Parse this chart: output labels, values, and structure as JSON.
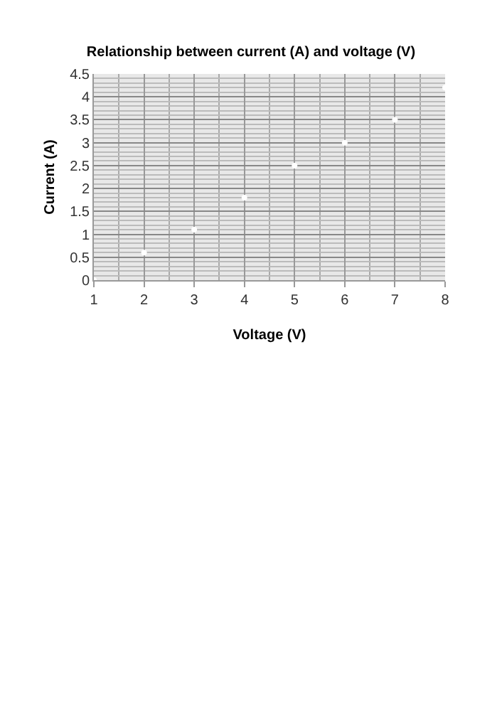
{
  "chart_data": {
    "type": "scatter",
    "title": "Relationship between current (A) and voltage (V)",
    "xlabel": "Voltage (V)",
    "ylabel": "Current (A)",
    "x": [
      1,
      2,
      3,
      4,
      5,
      6,
      7,
      8
    ],
    "series": [
      {
        "color": "#ffffff",
        "values": [
          0,
          0.6,
          1.1,
          1.8,
          2.5,
          3,
          3.5,
          4.2
        ]
      }
    ],
    "xlim": [
      1,
      8
    ],
    "xticks": [
      1,
      2,
      3,
      4,
      5,
      6,
      7,
      8
    ],
    "ylim": [
      0,
      4.5
    ],
    "yticks": [
      0,
      0.5,
      1,
      1.5,
      2,
      2.5,
      3,
      3.5,
      4,
      4.5
    ],
    "grid": true,
    "marker": "circle",
    "legend": false
  }
}
